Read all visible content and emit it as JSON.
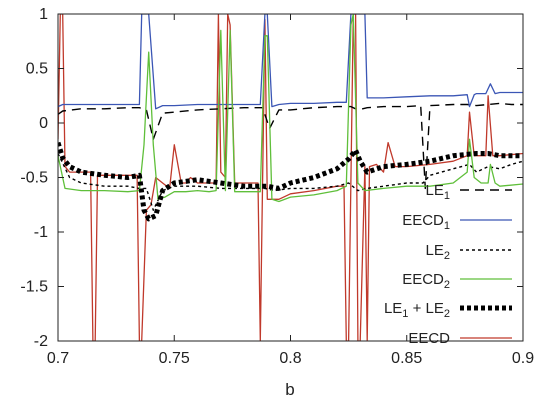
{
  "chart_data": {
    "type": "line",
    "title": "",
    "xlabel": "b",
    "ylabel": "",
    "xlim": [
      0.7,
      0.9
    ],
    "ylim": [
      -2,
      1
    ],
    "x_ticks": [
      "0.7",
      "0.75",
      "0.8",
      "0.85",
      "0.9"
    ],
    "x_tick_values": [
      0.7,
      0.75,
      0.8,
      0.85,
      0.9
    ],
    "y_ticks": [
      "1",
      "0.5",
      "0",
      "-0.5",
      "-1",
      "-1.5",
      "-2"
    ],
    "y_tick_values": [
      1,
      0.5,
      0,
      -0.5,
      -1,
      -1.5,
      -2
    ],
    "grid": false,
    "legend_position": "right",
    "legend": [
      {
        "base": "LE",
        "sub": "1",
        "rest": "",
        "sub2": "",
        "rest2": ""
      },
      {
        "base": "EECD",
        "sub": "1",
        "rest": "",
        "sub2": "",
        "rest2": ""
      },
      {
        "base": "LE",
        "sub": "2",
        "rest": "",
        "sub2": "",
        "rest2": ""
      },
      {
        "base": "EECD",
        "sub": "2",
        "rest": "",
        "sub2": "",
        "rest2": ""
      },
      {
        "base": "LE",
        "sub": "1",
        "rest": " + LE",
        "sub2": "2",
        "rest2": ""
      },
      {
        "base": "EECD",
        "sub": "",
        "rest": "",
        "sub2": "",
        "rest2": ""
      }
    ],
    "series": [
      {
        "style": "long-dash",
        "color": "#000000",
        "x": [
          0.7,
          0.702,
          0.71,
          0.72,
          0.73,
          0.735,
          0.738,
          0.741,
          0.745,
          0.75,
          0.76,
          0.77,
          0.78,
          0.788,
          0.791,
          0.795,
          0.8,
          0.81,
          0.82,
          0.826,
          0.829,
          0.833,
          0.84,
          0.85,
          0.856,
          0.858,
          0.86,
          0.87,
          0.876,
          0.88,
          0.885,
          0.89,
          0.895,
          0.9
        ],
        "y": [
          0.08,
          0.11,
          0.13,
          0.13,
          0.14,
          0.14,
          0.12,
          -0.15,
          0.09,
          0.1,
          0.12,
          0.13,
          0.14,
          0.14,
          -0.05,
          0.12,
          0.12,
          0.14,
          0.15,
          0.15,
          0.12,
          0.14,
          0.15,
          0.15,
          0.16,
          -0.6,
          0.16,
          0.17,
          0.17,
          0.16,
          0.17,
          0.18,
          0.17,
          0.17
        ]
      },
      {
        "style": "solid",
        "color": "#3b56b5",
        "x": [
          0.7,
          0.702,
          0.71,
          0.72,
          0.73,
          0.735,
          0.736,
          0.738,
          0.739,
          0.742,
          0.745,
          0.75,
          0.76,
          0.77,
          0.78,
          0.787,
          0.789,
          0.79,
          0.792,
          0.795,
          0.8,
          0.81,
          0.82,
          0.824,
          0.826,
          0.827,
          0.829,
          0.83,
          0.832,
          0.833,
          0.84,
          0.85,
          0.86,
          0.87,
          0.876,
          0.877,
          0.879,
          0.88,
          0.884,
          0.886,
          0.888,
          0.89,
          0.9
        ],
        "y": [
          0.15,
          0.17,
          0.17,
          0.17,
          0.17,
          0.17,
          1.0,
          1.0,
          1.0,
          0.13,
          0.16,
          0.16,
          0.17,
          0.17,
          0.17,
          0.17,
          1.0,
          1.0,
          0.15,
          0.17,
          0.18,
          0.18,
          0.19,
          0.19,
          1.0,
          1.0,
          1.0,
          1.0,
          1.0,
          0.23,
          0.23,
          0.24,
          0.25,
          0.25,
          0.26,
          0.15,
          0.26,
          0.27,
          0.27,
          0.36,
          0.27,
          0.28,
          0.28
        ]
      },
      {
        "style": "short-dash",
        "color": "#000000",
        "x": [
          0.7,
          0.705,
          0.71,
          0.72,
          0.73,
          0.735,
          0.738,
          0.741,
          0.745,
          0.75,
          0.76,
          0.77,
          0.78,
          0.789,
          0.793,
          0.8,
          0.81,
          0.82,
          0.825,
          0.829,
          0.833,
          0.84,
          0.85,
          0.857,
          0.86,
          0.87,
          0.877,
          0.88,
          0.885,
          0.89,
          0.895,
          0.9
        ],
        "y": [
          -0.28,
          -0.5,
          -0.55,
          -0.58,
          -0.58,
          -0.6,
          -0.6,
          -0.8,
          -0.62,
          -0.58,
          -0.58,
          -0.6,
          -0.6,
          -0.6,
          -0.62,
          -0.6,
          -0.6,
          -0.58,
          -0.55,
          -0.62,
          -0.6,
          -0.58,
          -0.55,
          -0.55,
          -0.48,
          -0.42,
          -0.38,
          -0.45,
          -0.4,
          -0.42,
          -0.38,
          -0.35
        ]
      },
      {
        "style": "solid",
        "color": "#5fbf3a",
        "x": [
          0.7,
          0.703,
          0.71,
          0.72,
          0.73,
          0.735,
          0.737,
          0.739,
          0.741,
          0.743,
          0.746,
          0.75,
          0.755,
          0.76,
          0.765,
          0.768,
          0.77,
          0.772,
          0.774,
          0.776,
          0.78,
          0.787,
          0.789,
          0.79,
          0.792,
          0.795,
          0.8,
          0.81,
          0.82,
          0.824,
          0.826,
          0.827,
          0.829,
          0.832,
          0.84,
          0.85,
          0.86,
          0.87,
          0.876,
          0.877,
          0.879,
          0.882,
          0.885,
          0.886,
          0.888,
          0.89,
          0.9
        ],
        "y": [
          -0.3,
          -0.6,
          -0.62,
          -0.62,
          -0.63,
          -0.62,
          -0.2,
          0.65,
          -0.2,
          -0.7,
          -0.68,
          -0.63,
          -0.63,
          -0.62,
          -0.63,
          -0.62,
          0.85,
          -0.62,
          0.85,
          -0.63,
          -0.63,
          -0.63,
          0.8,
          0.8,
          -0.7,
          -0.72,
          -0.68,
          -0.66,
          -0.62,
          -0.58,
          0.9,
          1.0,
          -0.55,
          -0.62,
          -0.6,
          -0.58,
          -0.58,
          -0.55,
          -0.45,
          -0.15,
          -0.5,
          -0.55,
          -0.55,
          -0.38,
          -0.55,
          -0.58,
          -0.56
        ]
      },
      {
        "style": "dotted-bold",
        "color": "#000000",
        "x": [
          0.7,
          0.702,
          0.705,
          0.71,
          0.72,
          0.73,
          0.735,
          0.737,
          0.739,
          0.742,
          0.745,
          0.75,
          0.76,
          0.77,
          0.78,
          0.785,
          0.79,
          0.795,
          0.8,
          0.81,
          0.82,
          0.825,
          0.828,
          0.83,
          0.833,
          0.84,
          0.85,
          0.86,
          0.87,
          0.88,
          0.885,
          0.89,
          0.9
        ],
        "y": [
          -0.18,
          -0.32,
          -0.4,
          -0.45,
          -0.48,
          -0.5,
          -0.48,
          -0.8,
          -0.88,
          -0.85,
          -0.62,
          -0.55,
          -0.52,
          -0.55,
          -0.58,
          -0.58,
          -0.58,
          -0.6,
          -0.55,
          -0.5,
          -0.42,
          -0.33,
          -0.25,
          -0.35,
          -0.45,
          -0.4,
          -0.38,
          -0.35,
          -0.3,
          -0.28,
          -0.28,
          -0.3,
          -0.3
        ]
      },
      {
        "style": "solid",
        "color": "#c0392b",
        "x": [
          0.7,
          0.701,
          0.702,
          0.703,
          0.705,
          0.71,
          0.714,
          0.715,
          0.716,
          0.717,
          0.72,
          0.73,
          0.734,
          0.735,
          0.736,
          0.738,
          0.74,
          0.742,
          0.745,
          0.748,
          0.75,
          0.753,
          0.755,
          0.757,
          0.76,
          0.765,
          0.768,
          0.769,
          0.77,
          0.772,
          0.773,
          0.774,
          0.776,
          0.78,
          0.786,
          0.787,
          0.789,
          0.79,
          0.792,
          0.795,
          0.8,
          0.81,
          0.82,
          0.823,
          0.824,
          0.825,
          0.827,
          0.828,
          0.829,
          0.83,
          0.832,
          0.833,
          0.834,
          0.837,
          0.84,
          0.842,
          0.845,
          0.85,
          0.86,
          0.87,
          0.876,
          0.877,
          0.879,
          0.88,
          0.884,
          0.885,
          0.887,
          0.89,
          0.9
        ],
        "y": [
          -0.15,
          1.0,
          1.0,
          -0.4,
          -0.45,
          -0.45,
          -0.45,
          -2.0,
          -2.0,
          -0.48,
          -0.48,
          -0.48,
          -0.48,
          -2.0,
          -2.0,
          -0.8,
          -0.75,
          -0.5,
          -0.55,
          -0.6,
          -0.2,
          -0.55,
          -0.55,
          -0.5,
          -0.55,
          -0.55,
          -0.55,
          1.0,
          -0.45,
          -0.5,
          1.0,
          0.9,
          -0.55,
          -0.55,
          -0.55,
          -2.0,
          0.95,
          -0.7,
          -0.7,
          -0.7,
          -0.65,
          -0.62,
          -0.58,
          -0.58,
          -2.0,
          -2.0,
          1.0,
          1.0,
          -2.0,
          -2.0,
          -0.4,
          -2.0,
          -0.4,
          -0.38,
          -0.45,
          -0.18,
          -0.4,
          -0.4,
          -0.38,
          -0.35,
          -0.3,
          0.1,
          -0.3,
          -0.3,
          -0.3,
          0.25,
          -0.3,
          -0.3,
          -0.28
        ]
      }
    ]
  }
}
